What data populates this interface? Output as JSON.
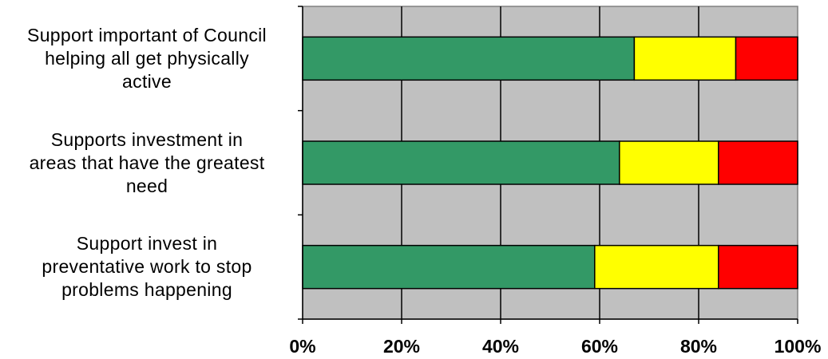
{
  "chart_data": {
    "type": "bar",
    "orientation": "horizontal",
    "stacked": true,
    "percent_stacked": true,
    "categories": [
      [
        "Support important of Council",
        "helping all get physically",
        "active"
      ],
      [
        "Supports investment in",
        "areas that have the greatest",
        "need"
      ],
      [
        "Support invest in",
        "preventative work to stop",
        "problems happening"
      ]
    ],
    "series": [
      {
        "color": "#339966",
        "values": [
          67,
          64,
          59
        ]
      },
      {
        "color": "#ffff00",
        "values": [
          20.5,
          20,
          25
        ]
      },
      {
        "color": "#ff0000",
        "values": [
          12.5,
          16,
          16
        ]
      }
    ],
    "xlim": [
      0,
      100
    ],
    "xticks": [
      "0%",
      "20%",
      "40%",
      "60%",
      "80%",
      "100%"
    ],
    "grid": true,
    "plot_background": "#c0c0c0",
    "legend": "none"
  }
}
